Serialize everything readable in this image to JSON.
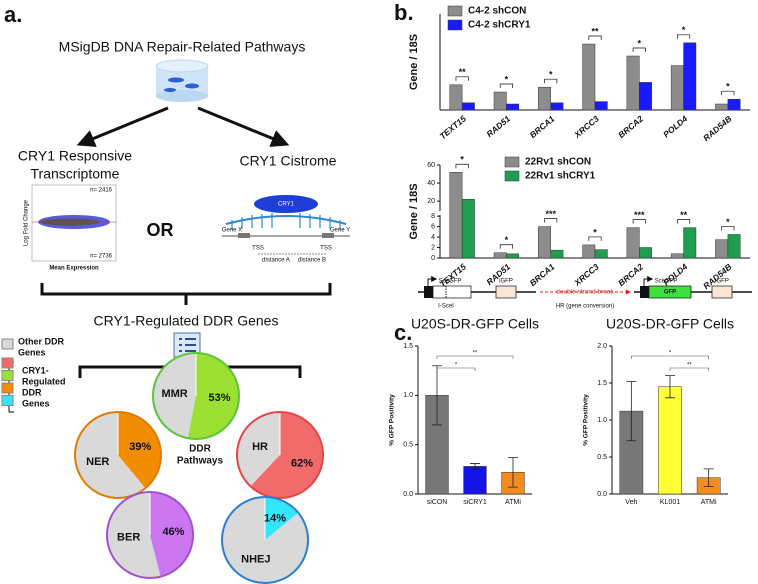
{
  "panels": [
    "a.",
    "b.",
    "c."
  ],
  "diagram_a": {
    "title": "MSigDB DNA Repair-Related Pathways",
    "transcriptome": [
      "CRY1 Responsive",
      "Transcriptome"
    ],
    "cistrome": "CRY1 Cistrome",
    "or": "OR",
    "ma_plot": {
      "ylabel": "Log Fold Change",
      "xlabel": "Mean Expression",
      "n_up": "n= 2416",
      "n_down": "n= 2736"
    },
    "cistrome_plot": {
      "factor": "CRY1",
      "gene_x": "Gene X",
      "gene_y": "Gene Y",
      "tss": "TSS",
      "distance_a": "distance A",
      "distance_b": "distance B"
    },
    "regulated": "CRY1-Regulated DDR Genes",
    "pathways": [
      "DDR",
      "Pathways"
    ],
    "legend": {
      "other": [
        "Other DDR",
        "Genes"
      ],
      "regulated": [
        "CRY1-",
        "Regulated",
        "DDR",
        "Genes"
      ],
      "other_color": "#d9d9d9",
      "colors": [
        "#f26b6b",
        "#9be033",
        "#f28c00",
        "#33e6ff"
      ]
    }
  },
  "diagram_c": {
    "left_construct": {
      "sce": "SceGFP",
      "igfp": "iGFP",
      "site": "I-SceI"
    },
    "event": "double strand break",
    "repair": "HR (gene conversion)",
    "right_construct": {
      "sce": "SceGFP",
      "gfp": "GFP",
      "igfp": "iGFP"
    }
  },
  "chart_data": [
    {
      "type": "pie",
      "title": "MMR",
      "values": [
        53
      ],
      "value_labels": [
        "53%"
      ],
      "color": "#9be033",
      "border": "#5cc43c"
    },
    {
      "type": "pie",
      "title": "NER",
      "values": [
        39
      ],
      "value_labels": [
        "39%"
      ],
      "color": "#f28c00",
      "border": "#e07b00"
    },
    {
      "type": "pie",
      "title": "HR",
      "values": [
        62
      ],
      "value_labels": [
        "62%"
      ],
      "color": "#f26b6b",
      "border": "#e64545"
    },
    {
      "type": "pie",
      "title": "BER",
      "values": [
        46
      ],
      "value_labels": [
        "46%"
      ],
      "color": "#cc77f0",
      "border": "#a050d0"
    },
    {
      "type": "pie",
      "title": "NHEJ",
      "values": [
        14
      ],
      "value_labels": [
        "14%"
      ],
      "color": "#33e6ff",
      "border": "#2a7fd0"
    },
    {
      "type": "grouped_bar",
      "ylabel": "Gene / 18S",
      "categories": [
        "TEXT15",
        "RAD51",
        "BRCA1",
        "XRCC3",
        "BRCA2",
        "POLD4",
        "RAD54B"
      ],
      "series": [
        {
          "name": "C4-2 shCON",
          "color": "#8c8c8c",
          "values": [
            2.1,
            1.5,
            1.9,
            5.5,
            4.5,
            3.7,
            0.5
          ]
        },
        {
          "name": "C4-2 shCRY1",
          "color": "#1a1aff",
          "values": [
            0.6,
            0.5,
            0.6,
            0.7,
            2.3,
            5.6,
            0.9
          ]
        }
      ],
      "significance": [
        "**",
        "*",
        "*",
        "**",
        "*",
        "*",
        "*"
      ],
      "ylim": [
        0,
        8
      ],
      "legend": "upper left"
    },
    {
      "type": "grouped_bar",
      "ylabel": "Gene / 18S",
      "categories": [
        "TEXT15",
        "RAD51",
        "BRCA1",
        "XRCC3",
        "BRCA2",
        "POLD4",
        "RAD54B"
      ],
      "series": [
        {
          "name": "22Rv1 shCON",
          "color": "#8c8c8c",
          "values": [
            52,
            1,
            6,
            2.5,
            5.8,
            0.8,
            3.5
          ]
        },
        {
          "name": "22Rv1 shCRY1",
          "color": "#1f9e4f",
          "values": [
            22,
            0.8,
            1.5,
            1.6,
            2,
            5.8,
            4.5
          ]
        }
      ],
      "significance": [
        "*",
        "*",
        "***",
        "*",
        "***",
        "**",
        "*"
      ],
      "ylim": [
        0,
        60
      ],
      "ybreak": [
        8,
        10
      ],
      "yticks": [
        0,
        2,
        4,
        6,
        8,
        20,
        40,
        60
      ],
      "legend": "upper center"
    },
    {
      "type": "bar",
      "title": "U20S-DR-GFP Cells",
      "ylabel": "% GFP Positivity",
      "categories": [
        "siCON",
        "siCRY1",
        "ATMi"
      ],
      "values": [
        1.0,
        0.28,
        0.22
      ],
      "errors": [
        0.3,
        0.03,
        0.15
      ],
      "colors": [
        "#777777",
        "#1414e6",
        "#f28c1e"
      ],
      "ylim": [
        0,
        1.5
      ],
      "yticks": [
        {
          "value": 0,
          "label": "0.0"
        },
        {
          "value": 0.5,
          "label": "0.5"
        },
        {
          "value": 1,
          "label": "1.0"
        },
        {
          "value": 1.5,
          "label": "1.5"
        }
      ],
      "comparisons": [
        {
          "label": "*",
          "pair": [
            "siCON",
            "siCRY1"
          ]
        },
        {
          "label": "**",
          "pair": [
            "siCON",
            "ATMi"
          ]
        }
      ]
    },
    {
      "type": "bar",
      "title": "U20S-DR-GFP Cells",
      "ylabel": "% GFP Positivity",
      "categories": [
        "Veh",
        "KL001",
        "ATMi"
      ],
      "values": [
        1.12,
        1.45,
        0.22
      ],
      "errors": [
        0.4,
        0.15,
        0.12
      ],
      "colors": [
        "#777777",
        "#ffff33",
        "#f28c1e"
      ],
      "ylim": [
        0,
        2
      ],
      "yticks": [
        {
          "value": 0,
          "label": "0.0"
        },
        {
          "value": 0.5,
          "label": "0.5"
        },
        {
          "value": 1,
          "label": "1.0"
        },
        {
          "value": 1.5,
          "label": "1.5"
        },
        {
          "value": 2,
          "label": "2.0"
        }
      ],
      "comparisons": [
        {
          "label": "**",
          "pair": [
            "KL001",
            "ATMi"
          ]
        },
        {
          "label": "*",
          "pair": [
            "Veh",
            "ATMi"
          ]
        }
      ]
    }
  ]
}
